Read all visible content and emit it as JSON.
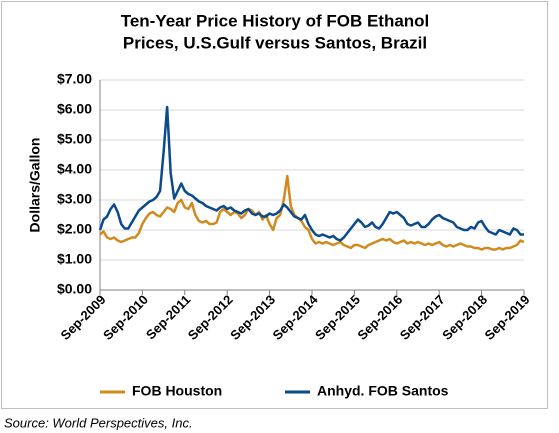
{
  "chart_data": {
    "type": "line",
    "title": [
      "Ten-Year Price History of FOB Ethanol",
      "Prices, U.S.Gulf versus Santos, Brazil"
    ],
    "y_label": "Dollars/Gallon",
    "source": "Source: World Perspectives, Inc.",
    "legend": "bottom",
    "grid": true,
    "ylim": [
      0,
      7
    ],
    "yticks": [
      {
        "value": 0,
        "label": "$0.00"
      },
      {
        "value": 1,
        "label": "$1.00"
      },
      {
        "value": 2,
        "label": "$2.00"
      },
      {
        "value": 3,
        "label": "$3.00"
      },
      {
        "value": 4,
        "label": "$4.00"
      },
      {
        "value": 5,
        "label": "$5.00"
      },
      {
        "value": 6,
        "label": "$6.00"
      },
      {
        "value": 7,
        "label": "$7.00"
      }
    ],
    "xlim": [
      "2009-09",
      "2019-09"
    ],
    "xticks": [
      {
        "value": "2009-09",
        "label": "Sep-2009"
      },
      {
        "value": "2010-09",
        "label": "Sep-2010"
      },
      {
        "value": "2011-09",
        "label": "Sep-2011"
      },
      {
        "value": "2012-09",
        "label": "Sep-2012"
      },
      {
        "value": "2013-09",
        "label": "Sep-2013"
      },
      {
        "value": "2014-09",
        "label": "Sep-2014"
      },
      {
        "value": "2015-09",
        "label": "Sep-2015"
      },
      {
        "value": "2016-09",
        "label": "Sep-2016"
      },
      {
        "value": "2017-09",
        "label": "Sep-2017"
      },
      {
        "value": "2018-09",
        "label": "Sep-2018"
      },
      {
        "value": "2019-09",
        "label": "Sep-2019"
      }
    ],
    "x": [
      "2009-09",
      "2009-10",
      "2009-11",
      "2009-12",
      "2010-01",
      "2010-02",
      "2010-03",
      "2010-04",
      "2010-05",
      "2010-06",
      "2010-07",
      "2010-08",
      "2010-09",
      "2010-10",
      "2010-11",
      "2010-12",
      "2011-01",
      "2011-02",
      "2011-03",
      "2011-04",
      "2011-05",
      "2011-06",
      "2011-07",
      "2011-08",
      "2011-09",
      "2011-10",
      "2011-11",
      "2011-12",
      "2012-01",
      "2012-02",
      "2012-03",
      "2012-04",
      "2012-05",
      "2012-06",
      "2012-07",
      "2012-08",
      "2012-09",
      "2012-10",
      "2012-11",
      "2012-12",
      "2013-01",
      "2013-02",
      "2013-03",
      "2013-04",
      "2013-05",
      "2013-06",
      "2013-07",
      "2013-08",
      "2013-09",
      "2013-10",
      "2013-11",
      "2013-12",
      "2014-01",
      "2014-02",
      "2014-03",
      "2014-04",
      "2014-05",
      "2014-06",
      "2014-07",
      "2014-08",
      "2014-09",
      "2014-10",
      "2014-11",
      "2014-12",
      "2015-01",
      "2015-02",
      "2015-03",
      "2015-04",
      "2015-05",
      "2015-06",
      "2015-07",
      "2015-08",
      "2015-09",
      "2015-10",
      "2015-11",
      "2015-12",
      "2016-01",
      "2016-02",
      "2016-03",
      "2016-04",
      "2016-05",
      "2016-06",
      "2016-07",
      "2016-08",
      "2016-09",
      "2016-10",
      "2016-11",
      "2016-12",
      "2017-01",
      "2017-02",
      "2017-03",
      "2017-04",
      "2017-05",
      "2017-06",
      "2017-07",
      "2017-08",
      "2017-09",
      "2017-10",
      "2017-11",
      "2017-12",
      "2018-01",
      "2018-02",
      "2018-03",
      "2018-04",
      "2018-05",
      "2018-06",
      "2018-07",
      "2018-08",
      "2018-09",
      "2018-10",
      "2018-11",
      "2018-12",
      "2019-01",
      "2019-02",
      "2019-03",
      "2019-04",
      "2019-05",
      "2019-06",
      "2019-07",
      "2019-08",
      "2019-09"
    ],
    "series": [
      {
        "name": "FOB Houston",
        "color": "#d08a1e",
        "values": [
          1.85,
          1.95,
          1.75,
          1.7,
          1.75,
          1.65,
          1.6,
          1.65,
          1.7,
          1.75,
          1.75,
          1.9,
          2.2,
          2.4,
          2.55,
          2.6,
          2.5,
          2.45,
          2.6,
          2.75,
          2.7,
          2.6,
          2.9,
          3.0,
          2.75,
          2.7,
          2.9,
          2.5,
          2.3,
          2.25,
          2.3,
          2.2,
          2.2,
          2.25,
          2.6,
          2.7,
          2.6,
          2.5,
          2.6,
          2.55,
          2.4,
          2.5,
          2.7,
          2.65,
          2.5,
          2.6,
          2.35,
          2.5,
          2.2,
          2.0,
          2.4,
          2.5,
          3.0,
          3.8,
          2.8,
          2.5,
          2.4,
          2.3,
          2.1,
          2.0,
          1.7,
          1.55,
          1.6,
          1.55,
          1.6,
          1.55,
          1.5,
          1.55,
          1.6,
          1.5,
          1.45,
          1.4,
          1.5,
          1.5,
          1.45,
          1.4,
          1.5,
          1.55,
          1.6,
          1.65,
          1.7,
          1.65,
          1.7,
          1.6,
          1.55,
          1.6,
          1.65,
          1.55,
          1.6,
          1.55,
          1.6,
          1.55,
          1.5,
          1.55,
          1.5,
          1.55,
          1.6,
          1.5,
          1.45,
          1.5,
          1.45,
          1.5,
          1.55,
          1.5,
          1.45,
          1.45,
          1.4,
          1.4,
          1.35,
          1.4,
          1.4,
          1.35,
          1.35,
          1.4,
          1.35,
          1.4,
          1.4,
          1.45,
          1.5,
          1.65,
          1.6
        ]
      },
      {
        "name": "Anhyd. FOB Santos",
        "color": "#0b4a8b",
        "values": [
          2.0,
          2.35,
          2.45,
          2.7,
          2.85,
          2.6,
          2.2,
          2.05,
          2.05,
          2.25,
          2.45,
          2.65,
          2.75,
          2.85,
          2.95,
          3.0,
          3.1,
          3.3,
          4.6,
          6.1,
          3.9,
          3.05,
          3.3,
          3.55,
          3.3,
          3.2,
          3.15,
          3.05,
          2.95,
          2.9,
          2.8,
          2.75,
          2.7,
          2.65,
          2.75,
          2.8,
          2.7,
          2.75,
          2.65,
          2.6,
          2.55,
          2.65,
          2.7,
          2.55,
          2.5,
          2.55,
          2.45,
          2.45,
          2.55,
          2.5,
          2.55,
          2.65,
          2.85,
          2.75,
          2.6,
          2.45,
          2.4,
          2.35,
          2.5,
          2.2,
          2.0,
          1.85,
          1.8,
          1.85,
          1.8,
          1.75,
          1.8,
          1.7,
          1.65,
          1.75,
          1.9,
          2.05,
          2.2,
          2.35,
          2.25,
          2.1,
          2.15,
          2.25,
          2.1,
          2.05,
          2.2,
          2.4,
          2.6,
          2.55,
          2.6,
          2.5,
          2.4,
          2.2,
          2.15,
          2.2,
          2.25,
          2.1,
          2.1,
          2.2,
          2.35,
          2.45,
          2.5,
          2.4,
          2.35,
          2.3,
          2.25,
          2.1,
          2.05,
          2.0,
          2.0,
          2.1,
          2.05,
          2.25,
          2.3,
          2.1,
          1.95,
          1.9,
          1.85,
          2.0,
          1.95,
          1.9,
          1.85,
          2.05,
          2.0,
          1.85,
          1.85
        ]
      }
    ]
  }
}
